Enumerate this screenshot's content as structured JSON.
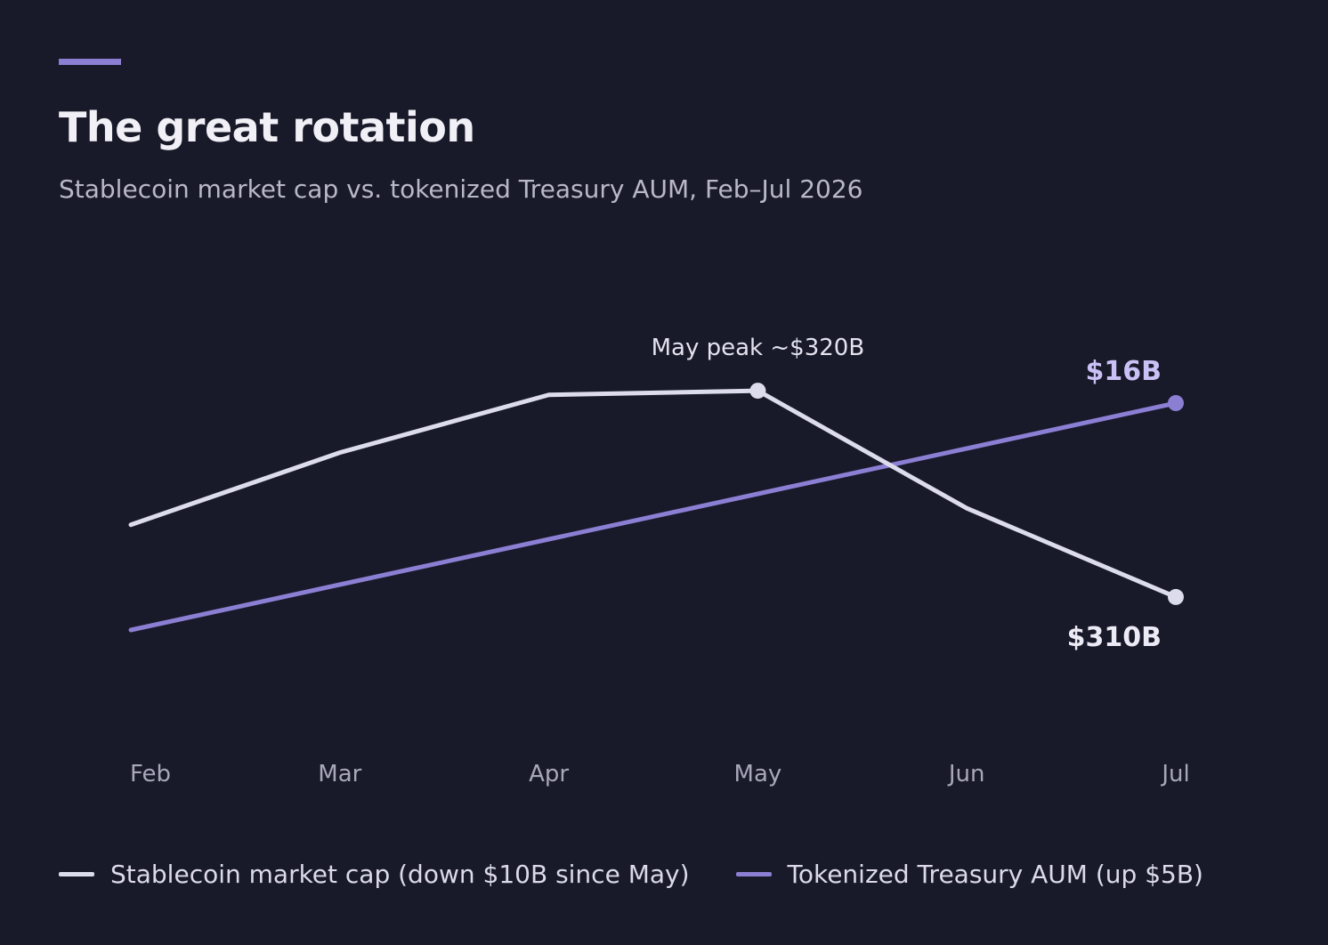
{
  "header": {
    "title": "The great rotation",
    "subtitle": "Stablecoin market cap vs. tokenized Treasury AUM, Feb–Jul 2026"
  },
  "colors": {
    "background": "#181929",
    "accent": "#8b7fd4",
    "stablecoin": "#dcdcec",
    "treasury": "#8b7fd4",
    "axis_text": "#a9a7ba"
  },
  "legend": {
    "stablecoin_label": "Stablecoin market cap (down $10B since May)",
    "treasury_label": "Tokenized Treasury AUM (up $5B)"
  },
  "chart_data": {
    "type": "line",
    "categories": [
      "Feb",
      "Mar",
      "Apr",
      "May",
      "Jun",
      "Jul"
    ],
    "series": [
      {
        "name": "Stablecoin market cap (down $10B since May)",
        "key": "stablecoin",
        "unit": "$B",
        "values": [
          313.5,
          317,
          319.8,
          320,
          314.3,
          310
        ],
        "ylim": [
          304,
          326
        ]
      },
      {
        "name": "Tokenized Treasury AUM (up $5B)",
        "key": "treasury",
        "unit": "$B",
        "values": [
          11,
          12,
          13,
          14,
          15,
          16
        ],
        "ylim": [
          9,
          19
        ]
      }
    ],
    "annotations": [
      {
        "series": "stablecoin",
        "index": 3,
        "text": "May peak ~$320B"
      },
      {
        "series": "stablecoin",
        "index": 5,
        "text": "$310B"
      },
      {
        "series": "treasury",
        "index": 5,
        "text": "$16B"
      }
    ],
    "grid": false,
    "legend_position": "bottom-left",
    "xlabel": "",
    "ylabel": ""
  }
}
